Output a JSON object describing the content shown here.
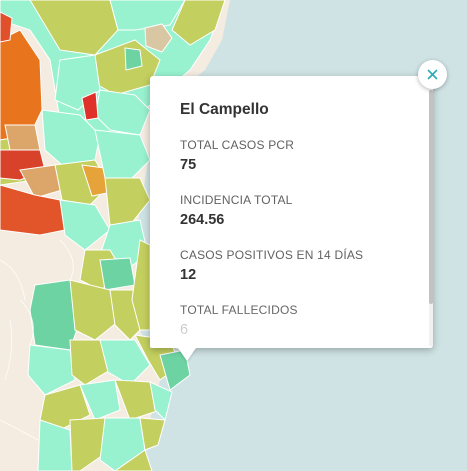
{
  "popup": {
    "title": "El Campello",
    "fields": [
      {
        "label": "TOTAL CASOS PCR",
        "value": "75"
      },
      {
        "label": "INCIDENCIA TOTAL",
        "value": "264.56"
      },
      {
        "label": "CASOS POSITIVOS EN 14 DÍAS",
        "value": "12"
      },
      {
        "label": "TOTAL FALLECIDOS",
        "value": "6"
      }
    ],
    "close_icon": "close-icon"
  },
  "colors": {
    "sea": "#cfe3e4",
    "land": "#f4ece0",
    "accent": "#2aa9b7",
    "choropleth_low": "#98f2cf",
    "choropleth_mid": "#c3cf5e",
    "choropleth_high": "#e55a28"
  }
}
